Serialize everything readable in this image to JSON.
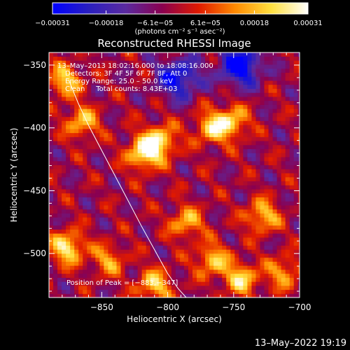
{
  "chart_data": {
    "type": "heatmap",
    "title": "Reconstructed RHESSI Image",
    "xlabel": "Heliocentric X (arcsec)",
    "ylabel": "Heliocentric Y (arcsec)",
    "xlim": [
      -890,
      -700
    ],
    "ylim": [
      -535,
      -340
    ],
    "x_ticks": [
      -850,
      -800,
      -750,
      -700
    ],
    "x_tick_labels": [
      "−850",
      "−800",
      "−750",
      "−700"
    ],
    "y_ticks": [
      -350,
      -400,
      -450,
      -500
    ],
    "y_tick_labels": [
      "−350",
      "−400",
      "−450",
      "−500"
    ],
    "colorbar": {
      "range": [
        -0.00031,
        0.00031
      ],
      "ticks": [
        -0.00031,
        -0.00018,
        -6.1e-05,
        6.1e-05,
        0.00018,
        0.00031
      ],
      "tick_labels": [
        "−0.00031",
        "−0.00018",
        "−6.1e−05",
        "6.1e−05",
        "0.00018",
        "0.00031"
      ],
      "colormap": [
        "#0000ff",
        "#2a1fbf",
        "#5a2aa0",
        "#8a0050",
        "#e01a00",
        "#ff8a00",
        "#ffe040",
        "#ffffff"
      ]
    },
    "units_label": "(photons cm⁻² s⁻¹ asec⁻²)",
    "annotations": {
      "time_range": "13–May–2013 18:02:16.000 to 18:08:16.000",
      "detectors": "Detectors: 3F 4F 5F 6F 7F 8F, Att 0",
      "energy_range": "Energy Range: 25.0 – 50.0 keV",
      "method_counts": "Clean     Total counts: 8.43E+03",
      "peak_position": "Position of Peak = [−883,−347]"
    },
    "limb": {
      "x": [
        -875,
        -868,
        -860,
        -850,
        -840,
        -830,
        -820,
        -810,
        -800,
        -792,
        -786
      ],
      "y": [
        -362,
        -380,
        -398,
        -418,
        -438,
        -458,
        -478,
        -497,
        -516,
        -528,
        -535
      ]
    },
    "bright_regions": [
      {
        "x": -878,
        "y": -362,
        "value": 0.00024
      },
      {
        "x": -865,
        "y": -395,
        "value": 0.00022
      },
      {
        "x": -818,
        "y": -420,
        "value": 0.0003
      },
      {
        "x": -806,
        "y": -410,
        "value": 0.00026
      },
      {
        "x": -767,
        "y": -400,
        "value": 0.00022
      },
      {
        "x": -752,
        "y": -395,
        "value": 0.00024
      },
      {
        "x": -786,
        "y": -475,
        "value": 0.00021
      },
      {
        "x": -876,
        "y": -495,
        "value": 0.00029
      },
      {
        "x": -845,
        "y": -505,
        "value": 0.00018
      },
      {
        "x": -810,
        "y": -525,
        "value": 0.00024
      },
      {
        "x": -766,
        "y": -505,
        "value": 0.00023
      },
      {
        "x": -744,
        "y": -520,
        "value": 0.00025
      },
      {
        "x": -728,
        "y": -470,
        "value": 0.00023
      },
      {
        "x": -712,
        "y": -515,
        "value": 0.00019
      }
    ],
    "dark_regions": [
      {
        "x": -745,
        "y": -350,
        "value": -0.00031
      },
      {
        "x": -792,
        "y": -360,
        "value": -0.00026
      }
    ],
    "grid": false,
    "legend": "none"
  },
  "footer_timestamp": "13–May–2022 19:19"
}
